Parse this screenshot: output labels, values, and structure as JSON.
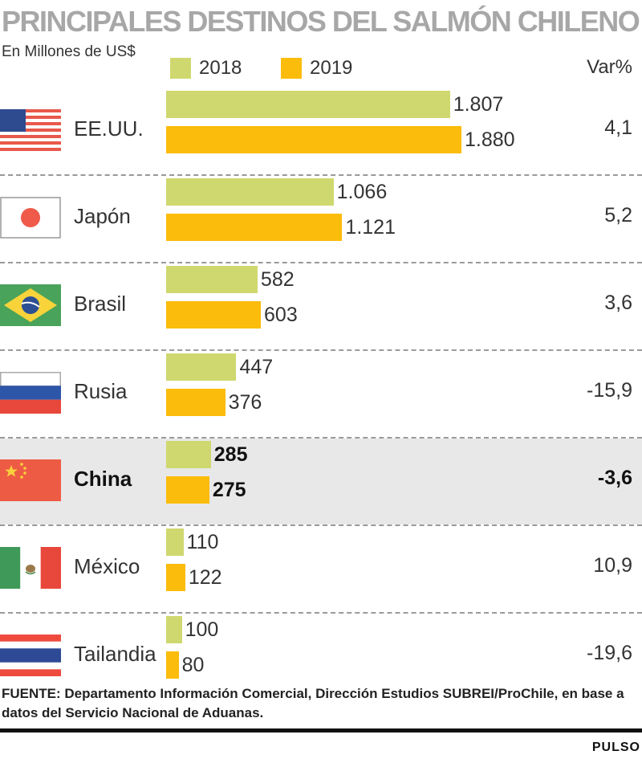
{
  "chart_data": {
    "type": "bar",
    "orientation": "horizontal",
    "title": "PRINCIPALES DESTINOS DEL SALMÓN CHILENO",
    "subtitle": "En Millones de US$",
    "var_header": "Var%",
    "categories": [
      "EE.UU.",
      "Japón",
      "Brasil",
      "Rusia",
      "China",
      "México",
      "Tailandia"
    ],
    "series": [
      {
        "name": "2018",
        "color": "#cfd86f",
        "values": [
          1807,
          1066,
          582,
          447,
          285,
          110,
          100
        ],
        "labels": [
          "1.807",
          "1.066",
          "582",
          "447",
          "285",
          "110",
          "100"
        ]
      },
      {
        "name": "2019",
        "color": "#fbbc0b",
        "values": [
          1880,
          1121,
          603,
          376,
          275,
          122,
          80
        ],
        "labels": [
          "1.880",
          "1.121",
          "603",
          "376",
          "275",
          "122",
          "80"
        ]
      }
    ],
    "variation": [
      "4,1",
      "5,2",
      "3,6",
      "-15,9",
      "-3,6",
      "10,9",
      "-19,6"
    ],
    "highlight": "China",
    "flags": [
      "usa-flag-icon",
      "japan-flag-icon",
      "brazil-flag-icon",
      "russia-flag-icon",
      "china-flag-icon",
      "mexico-flag-icon",
      "thailand-flag-icon"
    ]
  },
  "source": "FUENTE: Departamento Información Comercial, Dirección Estudios SUBREI/ProChile, en base a datos del Servicio Nacional de Aduanas.",
  "brand": "PULSO"
}
